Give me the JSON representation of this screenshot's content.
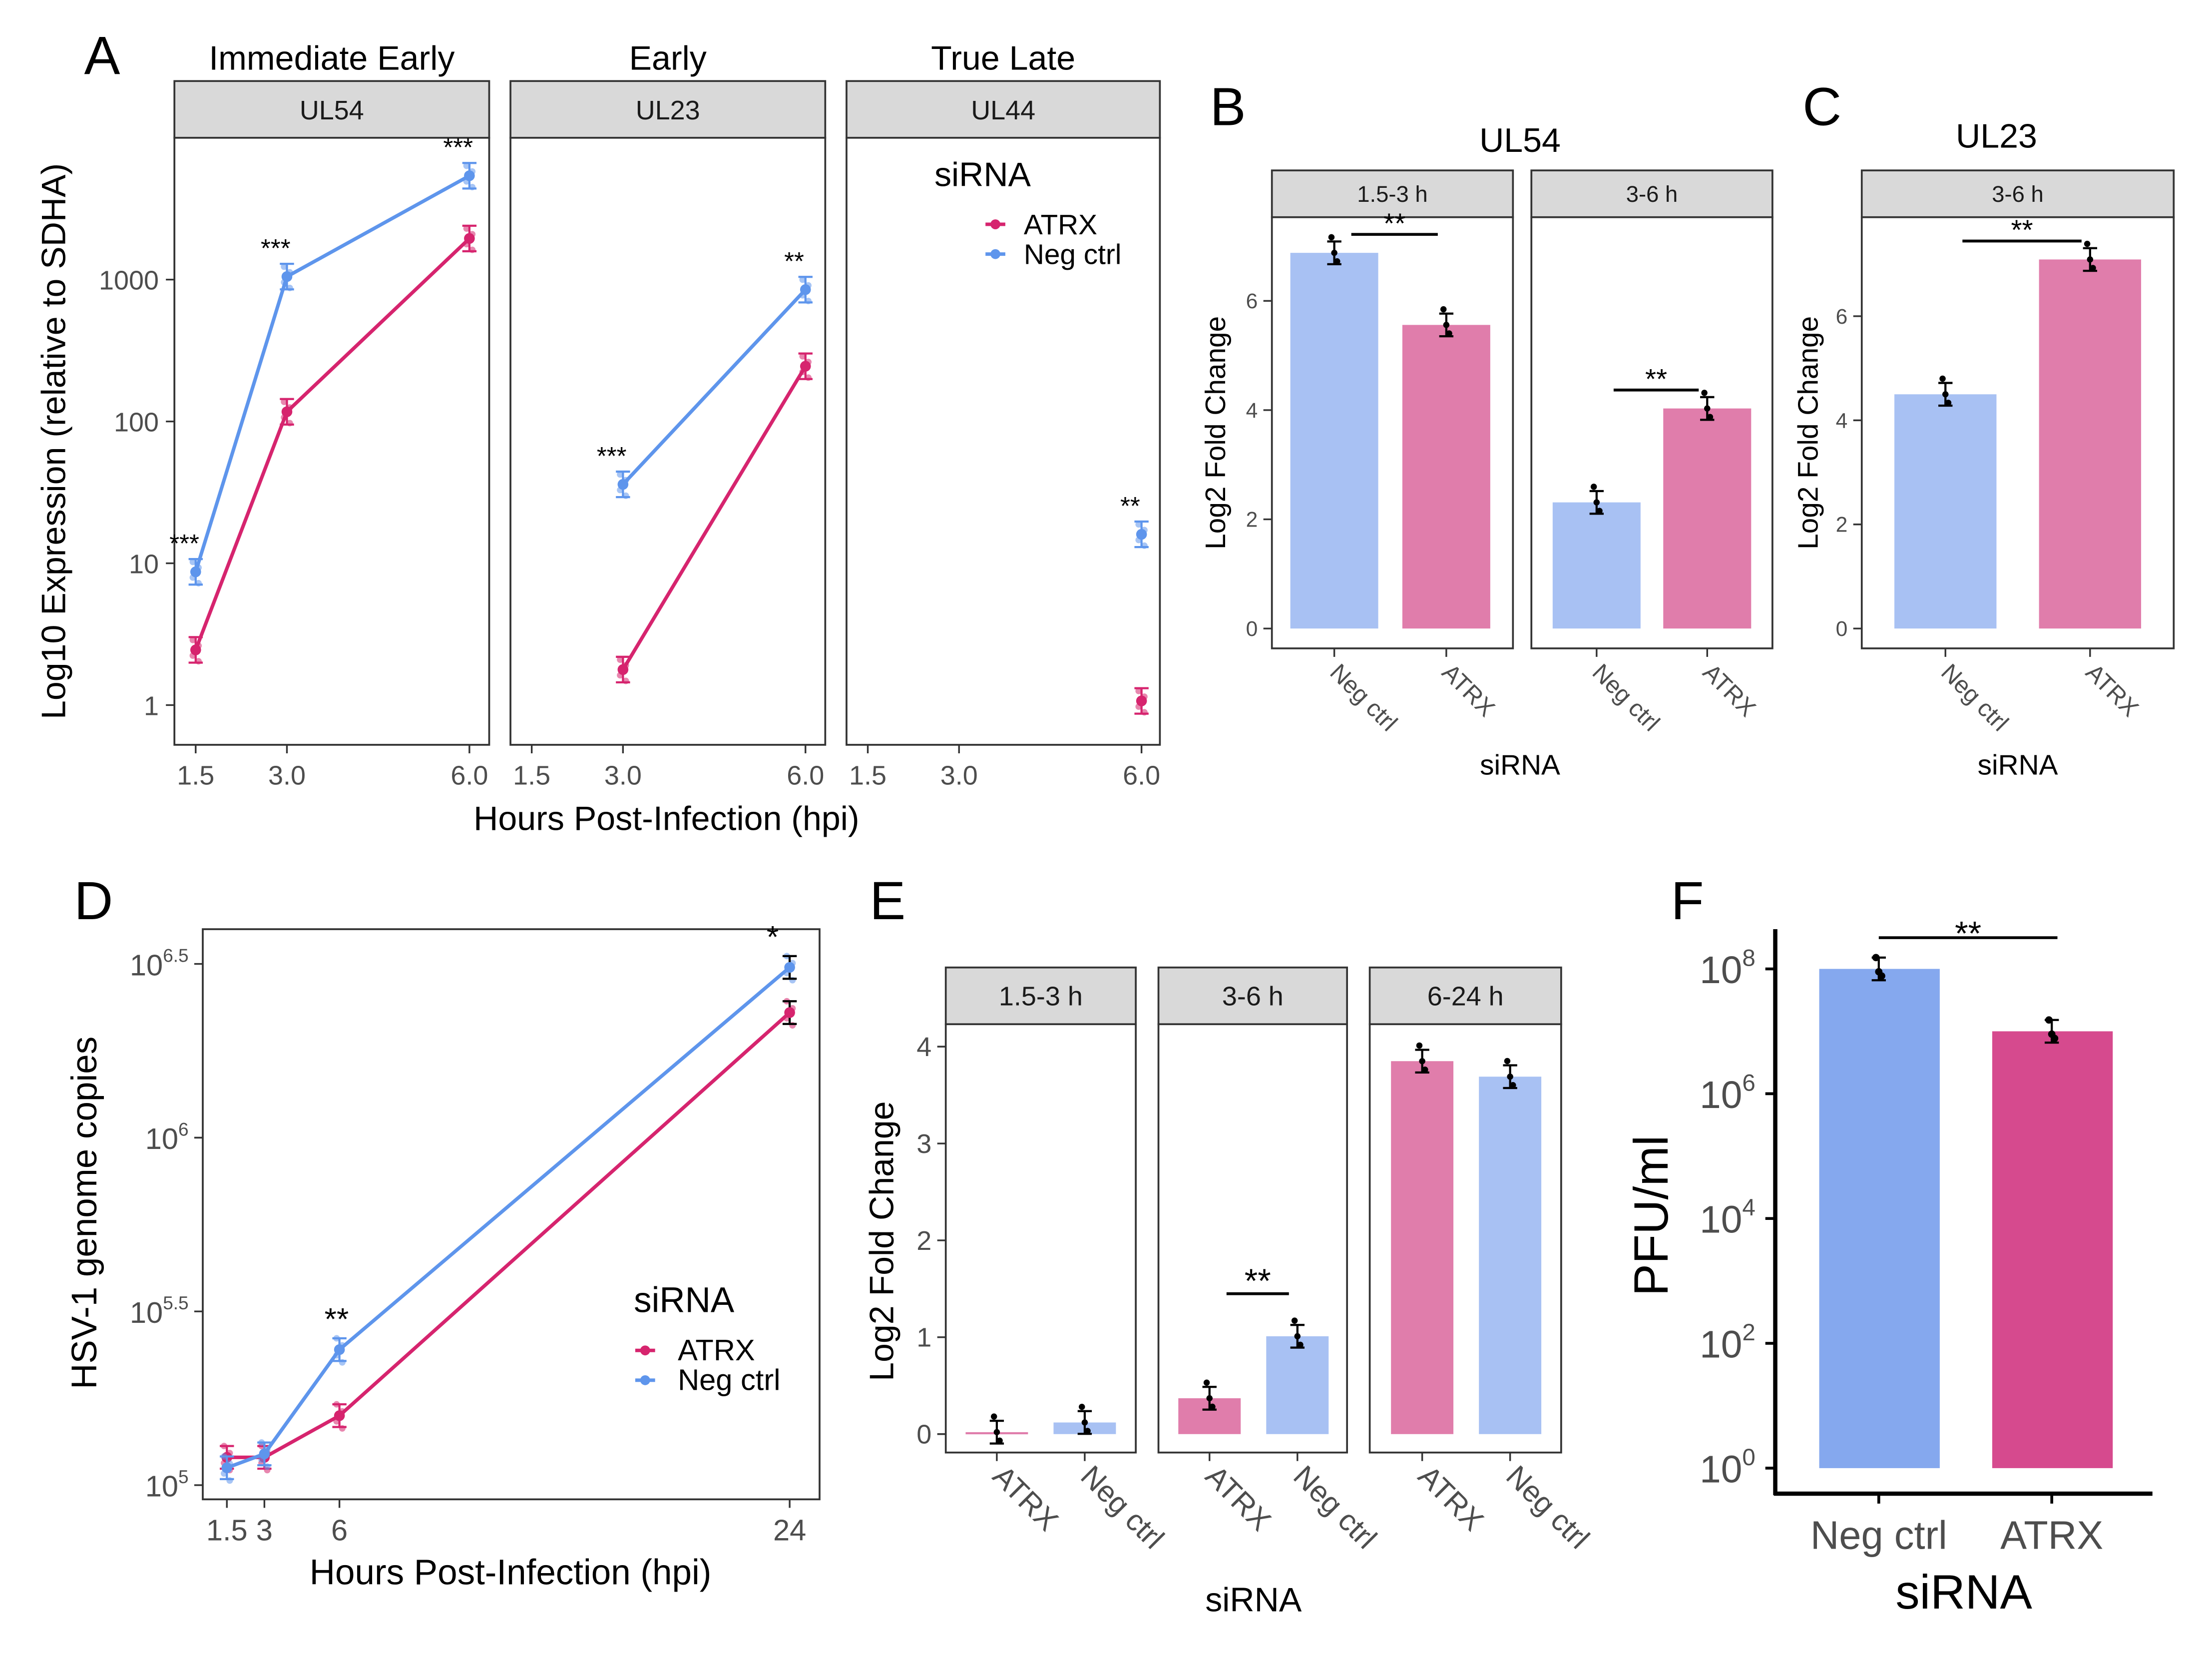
{
  "colors": {
    "atrx_line": "#D6246E",
    "neg_line": "#5E95EC",
    "atrx_bar": "#E07DAB",
    "neg_bar": "#A8C1F3",
    "atrx_bar_f": "#D64A8E",
    "neg_bar_f": "#85A8EE"
  },
  "panel_labels": {
    "A": "A",
    "B": "B",
    "C": "C",
    "D": "D",
    "E": "E",
    "F": "F"
  },
  "chart_data": [
    {
      "id": "A",
      "type": "line",
      "yscale": "log10",
      "xlabel": "Hours Post-Infection (hpi)",
      "ylabel": "Log10 Expression (relative to SDHA)",
      "yticks": [
        1,
        10,
        100,
        1000
      ],
      "ytick_labels": [
        "1",
        "10",
        "100",
        "1000"
      ],
      "xticks": [
        1.5,
        3.0,
        6.0
      ],
      "xtick_labels": [
        "1.5",
        "3.0",
        "6.0"
      ],
      "legend": {
        "title": "siRNA",
        "entries": [
          "ATRX",
          "Neg ctrl"
        ],
        "placement": "top-right"
      },
      "facets": [
        {
          "group": "Immediate Early",
          "strip": "UL54",
          "series": [
            {
              "name": "ATRX",
              "x": [
                1.5,
                3.0,
                6.0
              ],
              "y": [
                2.45,
                117,
                1950
              ]
            },
            {
              "name": "Neg ctrl",
              "x": [
                1.5,
                3.0,
                6.0
              ],
              "y": [
                8.7,
                1050,
                5400
              ]
            }
          ],
          "significance": [
            {
              "x": 1.5,
              "label": "***"
            },
            {
              "x": 3.0,
              "label": "***"
            },
            {
              "x": 6.0,
              "label": "***"
            }
          ]
        },
        {
          "group": "Early",
          "strip": "UL23",
          "series": [
            {
              "name": "ATRX",
              "x": [
                3.0,
                6.0
              ],
              "y": [
                1.78,
                245
              ]
            },
            {
              "name": "Neg ctrl",
              "x": [
                3.0,
                6.0
              ],
              "y": [
                36,
                850
              ]
            }
          ],
          "significance": [
            {
              "x": 3.0,
              "label": "***"
            },
            {
              "x": 6.0,
              "label": "**"
            }
          ]
        },
        {
          "group": "True Late",
          "strip": "UL44",
          "series": [
            {
              "name": "ATRX",
              "x": [
                6.0
              ],
              "y": [
                1.07
              ]
            },
            {
              "name": "Neg ctrl",
              "x": [
                6.0
              ],
              "y": [
                16
              ]
            }
          ],
          "significance": [
            {
              "x": 6.0,
              "label": "**"
            }
          ]
        }
      ]
    },
    {
      "id": "B",
      "type": "bar",
      "title": "UL54",
      "xlabel": "siRNA",
      "ylabel": "Log2 Fold Change",
      "yticks": [
        0,
        2,
        4,
        6
      ],
      "ytick_labels": [
        "0",
        "2",
        "4",
        "6"
      ],
      "facets": [
        {
          "strip": "1.5-3 h",
          "categories": [
            "Neg ctrl",
            "ATRX"
          ],
          "values": [
            6.88,
            5.56
          ],
          "significance": "**"
        },
        {
          "strip": "3-6 h",
          "categories": [
            "Neg ctrl",
            "ATRX"
          ],
          "values": [
            2.31,
            4.03
          ],
          "significance": "**"
        }
      ]
    },
    {
      "id": "C",
      "type": "bar",
      "title": "UL23",
      "xlabel": "siRNA",
      "ylabel": "Log2 Fold Change",
      "yticks": [
        0,
        2,
        4,
        6
      ],
      "ytick_labels": [
        "0",
        "2",
        "4",
        "6"
      ],
      "facets": [
        {
          "strip": "3-6 h",
          "categories": [
            "Neg ctrl",
            "ATRX"
          ],
          "values": [
            4.5,
            7.09
          ],
          "significance": "**"
        }
      ]
    },
    {
      "id": "D",
      "type": "line",
      "yscale": "log10",
      "xlabel": "Hours Post-Infection (hpi)",
      "ylabel": "HSV-1 genome copies",
      "ytick_base": "10",
      "yticks_log10": [
        5,
        5.5,
        6,
        6.5
      ],
      "ytick_exponents": [
        "5",
        "5.5",
        "6",
        "6.5"
      ],
      "xticks": [
        1.5,
        3,
        6,
        24
      ],
      "xtick_labels": [
        "1.5",
        "3",
        "6",
        "24"
      ],
      "legend": {
        "title": "siRNA",
        "entries": [
          "ATRX",
          "Neg ctrl"
        ],
        "placement": "right"
      },
      "series": [
        {
          "name": "ATRX",
          "x": [
            1.5,
            3,
            6,
            24
          ],
          "log10_y": [
            5.08,
            5.08,
            5.2,
            6.36
          ]
        },
        {
          "name": "Neg ctrl",
          "x": [
            1.5,
            3,
            6,
            24
          ],
          "log10_y": [
            5.05,
            5.09,
            5.39,
            6.49
          ]
        }
      ],
      "significance": [
        {
          "x": 6,
          "label": "**"
        },
        {
          "x": 24,
          "label": "*"
        }
      ]
    },
    {
      "id": "E",
      "type": "bar",
      "xlabel": "siRNA",
      "ylabel": "Log2 Fold Change",
      "yticks": [
        0,
        1,
        2,
        3,
        4
      ],
      "ytick_labels": [
        "0",
        "1",
        "2",
        "3",
        "4"
      ],
      "facets": [
        {
          "strip": "1.5-3 h",
          "categories": [
            "ATRX",
            "Neg ctrl"
          ],
          "values": [
            0.02,
            0.12
          ]
        },
        {
          "strip": "3-6 h",
          "categories": [
            "ATRX",
            "Neg ctrl"
          ],
          "values": [
            0.37,
            1.01
          ],
          "significance": "**"
        },
        {
          "strip": "6-24 h",
          "categories": [
            "ATRX",
            "Neg ctrl"
          ],
          "values": [
            3.85,
            3.69
          ]
        }
      ]
    },
    {
      "id": "F",
      "type": "bar",
      "yscale": "log10",
      "xlabel": "siRNA",
      "ylabel": "PFU/ml",
      "ytick_base": "10",
      "yticks_log10": [
        0,
        2,
        4,
        6,
        8
      ],
      "ytick_exponents": [
        "0",
        "2",
        "4",
        "6",
        "8"
      ],
      "categories": [
        "Neg ctrl",
        "ATRX"
      ],
      "log10_values": [
        8.0,
        7.0
      ],
      "significance": "**"
    }
  ]
}
